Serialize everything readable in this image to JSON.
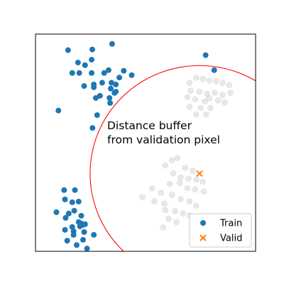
{
  "chart_data": {
    "type": "scatter",
    "title": "",
    "xlabel": "",
    "ylabel": "",
    "xlim": [
      0,
      100
    ],
    "ylim": [
      0,
      100
    ],
    "grid": false,
    "ticks_visible": false,
    "legend_placement": "lower-right",
    "legend": [
      {
        "label": "Train",
        "marker": "circle",
        "color": "#1f77b4"
      },
      {
        "label": "Valid",
        "marker": "x",
        "color": "#ff7f0e"
      }
    ],
    "annotation": "Distance buffer\nfrom validation pixel",
    "buffer_circle": {
      "center": [
        74.5,
        35.8
      ],
      "radius": 49.7,
      "color": "#ff0000"
    },
    "series": [
      {
        "name": "Train",
        "color": "#1f77b4",
        "points": [
          [
            14.8,
            92.6
          ],
          [
            25.8,
            92.9
          ],
          [
            34.8,
            95.5
          ],
          [
            19.3,
            86.9
          ],
          [
            22.5,
            85.7
          ],
          [
            25.5,
            88.2
          ],
          [
            16.7,
            82.1
          ],
          [
            19.9,
            82.1
          ],
          [
            25.5,
            82.1
          ],
          [
            31.2,
            82.1
          ],
          [
            33.2,
            83.4
          ],
          [
            40.1,
            83.1
          ],
          [
            43.7,
            81.1
          ],
          [
            38.1,
            80.0
          ],
          [
            30.3,
            77.6
          ],
          [
            34.5,
            77.6
          ],
          [
            36.5,
            76.8
          ],
          [
            26.5,
            76.8
          ],
          [
            22.1,
            76.1
          ],
          [
            26.5,
            75.5
          ],
          [
            34.2,
            74.9
          ],
          [
            36.5,
            73.5
          ],
          [
            35.9,
            72.9
          ],
          [
            29.3,
            71.6
          ],
          [
            33.6,
            70.6
          ],
          [
            27.4,
            70.6
          ],
          [
            33.9,
            68.3
          ],
          [
            10.4,
            64.8
          ],
          [
            28.0,
            62.7
          ],
          [
            25.9,
            56.8
          ],
          [
            77.3,
            90.3
          ],
          [
            81.2,
            83.4
          ],
          [
            13.0,
            28.2
          ],
          [
            17.9,
            28.2
          ],
          [
            13.4,
            23.9
          ],
          [
            16.7,
            22.6
          ],
          [
            19.6,
            22.9
          ],
          [
            9.5,
            18.0
          ],
          [
            15.1,
            17.4
          ],
          [
            17.6,
            18.7
          ],
          [
            20.8,
            16.4
          ],
          [
            13.7,
            15.4
          ],
          [
            19.6,
            13.5
          ],
          [
            20.8,
            12.8
          ],
          [
            22.5,
            12.5
          ],
          [
            16.7,
            11.2
          ],
          [
            20.2,
            11.5
          ],
          [
            21.6,
            12.2
          ],
          [
            13.4,
            9.9
          ],
          [
            17.3,
            9.2
          ],
          [
            22.1,
            8.9
          ],
          [
            26.5,
            7.6
          ],
          [
            17.3,
            7.6
          ],
          [
            14.4,
            4.9
          ],
          [
            21.6,
            5.3
          ],
          [
            18.7,
            2.9
          ],
          [
            23.4,
            1.3
          ]
        ]
      },
      {
        "name": "Valid",
        "color": "#ff7f0e",
        "points": [
          [
            74.5,
            35.8
          ]
        ]
      },
      {
        "name": "",
        "color": "#bdbdbd",
        "points": [
          [
            70.0,
            77.6
          ],
          [
            73.0,
            79.9
          ],
          [
            76.0,
            79.3
          ],
          [
            79.0,
            78.6
          ],
          [
            82.0,
            78.3
          ],
          [
            85.0,
            77.6
          ],
          [
            88.0,
            76.6
          ],
          [
            70.5,
            74.0
          ],
          [
            74.5,
            73.5
          ],
          [
            78.0,
            72.5
          ],
          [
            81.5,
            73.0
          ],
          [
            85.0,
            72.0
          ],
          [
            88.5,
            73.0
          ],
          [
            69.0,
            71.0
          ],
          [
            72.5,
            70.0
          ],
          [
            77.0,
            69.0
          ],
          [
            79.0,
            70.5
          ],
          [
            83.0,
            69.5
          ],
          [
            86.0,
            68.5
          ],
          [
            70.0,
            66.5
          ],
          [
            75.0,
            66.0
          ],
          [
            79.5,
            66.0
          ],
          [
            73.0,
            63.0
          ],
          [
            77.5,
            63.0
          ],
          [
            59.0,
            39.5
          ],
          [
            62.0,
            42.0
          ],
          [
            64.5,
            43.0
          ],
          [
            68.0,
            38.5
          ],
          [
            71.5,
            37.0
          ],
          [
            62.5,
            36.0
          ],
          [
            66.0,
            34.0
          ],
          [
            69.5,
            33.5
          ],
          [
            73.0,
            33.0
          ],
          [
            76.0,
            32.0
          ],
          [
            53.0,
            29.0
          ],
          [
            57.0,
            27.0
          ],
          [
            61.0,
            31.0
          ],
          [
            65.5,
            31.5
          ],
          [
            69.0,
            29.0
          ],
          [
            72.5,
            28.5
          ],
          [
            76.5,
            27.5
          ],
          [
            48.5,
            25.0
          ],
          [
            54.0,
            23.0
          ],
          [
            58.5,
            22.0
          ],
          [
            62.0,
            26.0
          ],
          [
            66.0,
            24.0
          ],
          [
            70.0,
            23.0
          ],
          [
            73.0,
            21.0
          ],
          [
            59.0,
            19.0
          ],
          [
            63.5,
            18.5
          ],
          [
            67.0,
            17.5
          ],
          [
            70.0,
            16.5
          ],
          [
            60.5,
            15.0
          ],
          [
            64.0,
            13.5
          ],
          [
            58.0,
            11.0
          ]
        ]
      }
    ]
  }
}
